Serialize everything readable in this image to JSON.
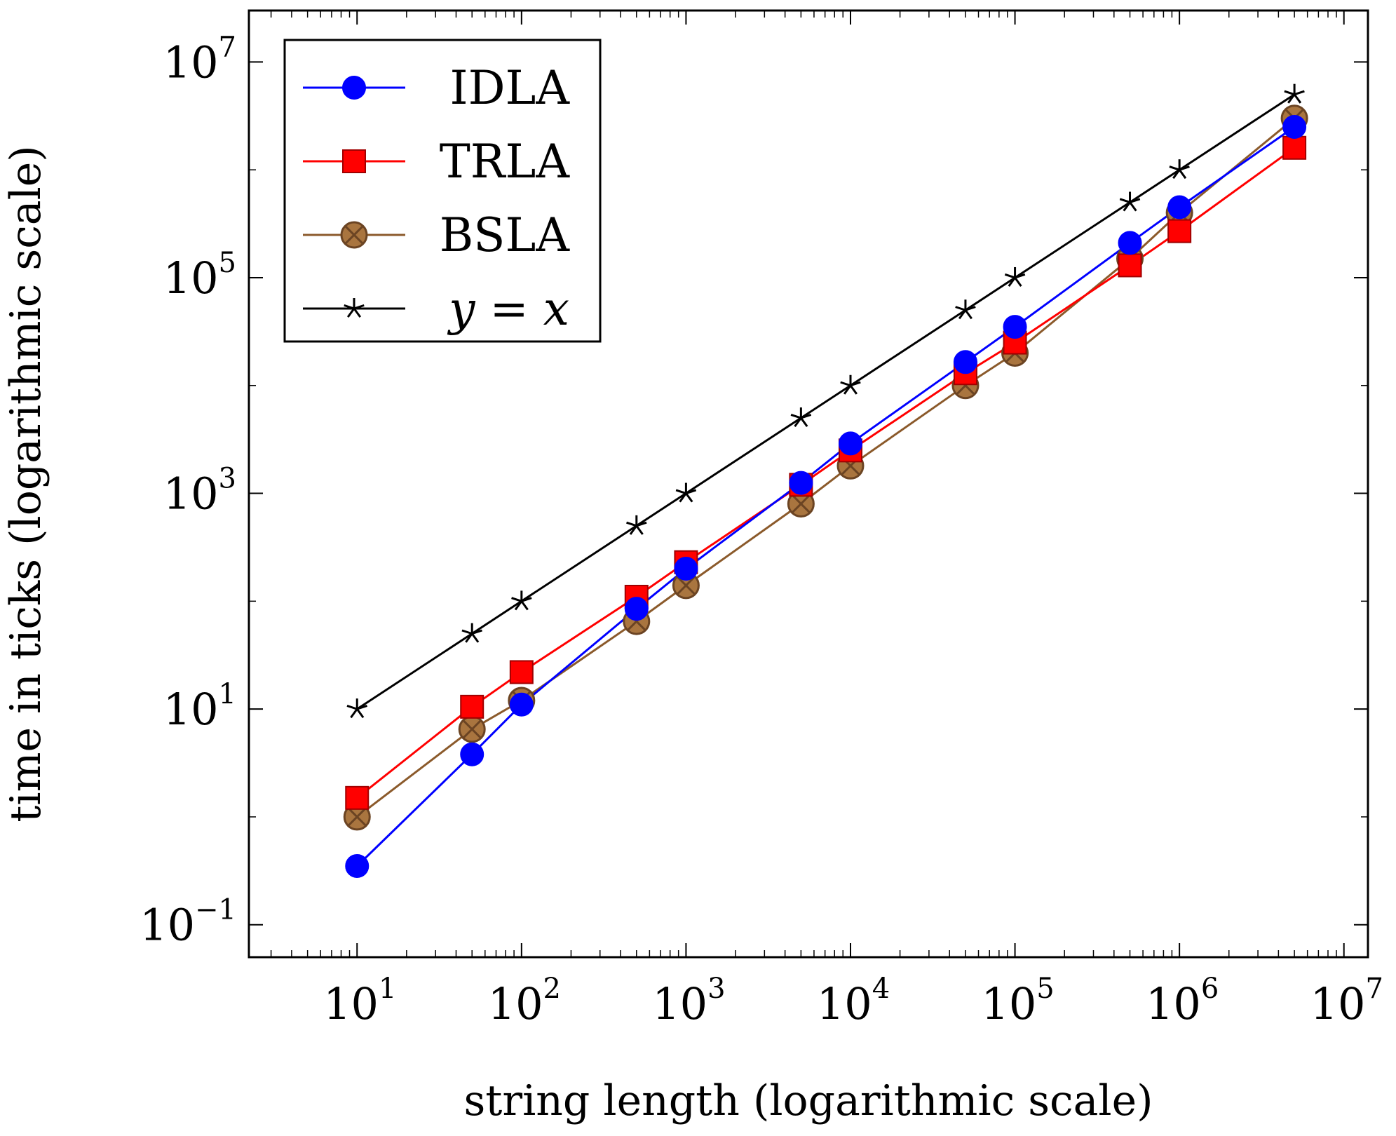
{
  "chart_data": {
    "type": "line",
    "xlabel": "string length (logarithmic scale)",
    "ylabel": "time in ticks (logarithmic scale)",
    "x_scale": "log",
    "y_scale": "log",
    "xlim": [
      2.2,
      14000000
    ],
    "ylim": [
      0.05,
      30000000
    ],
    "x_ticks": [
      {
        "base": "10",
        "exp": "1",
        "value": 10
      },
      {
        "base": "10",
        "exp": "2",
        "value": 100
      },
      {
        "base": "10",
        "exp": "3",
        "value": 1000
      },
      {
        "base": "10",
        "exp": "4",
        "value": 10000
      },
      {
        "base": "10",
        "exp": "5",
        "value": 100000
      },
      {
        "base": "10",
        "exp": "6",
        "value": 1000000
      },
      {
        "base": "10",
        "exp": "7",
        "value": 10000000
      }
    ],
    "y_ticks": [
      {
        "base": "10",
        "exp": "−1",
        "value": 0.1
      },
      {
        "base": "10",
        "exp": "1",
        "value": 10
      },
      {
        "base": "10",
        "exp": "3",
        "value": 1000
      },
      {
        "base": "10",
        "exp": "5",
        "value": 100000
      },
      {
        "base": "10",
        "exp": "7",
        "value": 10000000
      }
    ],
    "grid": false,
    "legend_position": "top-left",
    "series": [
      {
        "name": "IDLA",
        "color": "#0000ff",
        "marker": "circle",
        "x": [
          10,
          50,
          100,
          500,
          1000,
          5000,
          10000,
          50000,
          100000,
          500000,
          1000000,
          5000000
        ],
        "y": [
          0.35,
          3.8,
          11,
          85,
          200,
          1250,
          2900,
          16500,
          35000,
          210000,
          450000,
          2500000
        ]
      },
      {
        "name": "TRLA",
        "color": "#ff0000",
        "marker": "square",
        "x": [
          10,
          50,
          100,
          500,
          1000,
          5000,
          10000,
          50000,
          100000,
          500000,
          1000000,
          5000000
        ],
        "y": [
          1.5,
          10.5,
          22,
          110,
          230,
          1200,
          2500,
          13000,
          25000,
          130000,
          270000,
          1600000
        ]
      },
      {
        "name": "BSLA",
        "color": "#8b5a2b",
        "marker": "circle-x",
        "x": [
          10,
          50,
          100,
          500,
          1000,
          5000,
          10000,
          50000,
          100000,
          500000,
          1000000,
          5000000
        ],
        "y": [
          1.0,
          6.5,
          12,
          65,
          140,
          800,
          1800,
          10000,
          20000,
          150000,
          400000,
          3000000
        ]
      },
      {
        "name": "y = x",
        "color": "#000000",
        "marker": "star",
        "x": [
          10,
          50,
          100,
          500,
          1000,
          5000,
          10000,
          50000,
          100000,
          500000,
          1000000,
          5000000
        ],
        "y": [
          10,
          50,
          100,
          500,
          1000,
          5000,
          10000,
          50000,
          100000,
          500000,
          1000000,
          5000000
        ]
      }
    ]
  }
}
